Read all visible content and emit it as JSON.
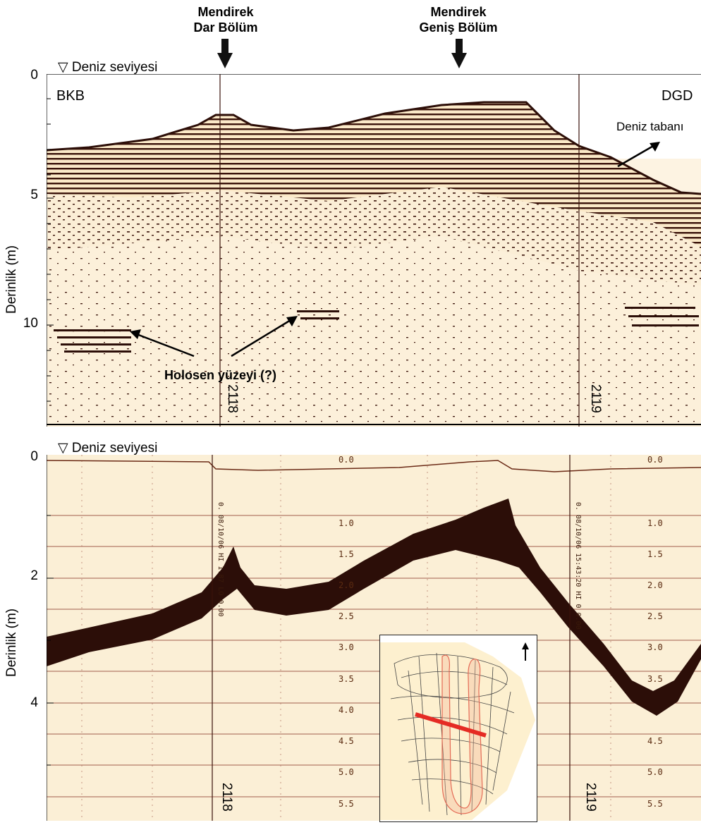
{
  "headers": {
    "narrow": {
      "line1": "Mendirek",
      "line2": "Dar Bölüm"
    },
    "wide": {
      "line1": "Mendirek",
      "line2": "Geniş Bölüm"
    }
  },
  "top_panel": {
    "sea_level_symbol": "▽",
    "sea_level_label": "Deniz seviyesi",
    "left_dir": "BKB",
    "right_dir": "DGD",
    "y_axis_label": "Derinlik (m)",
    "y_ticks": [
      "0",
      "5",
      "10"
    ],
    "seabed_label": "Deniz tabanı",
    "holocene_label": "Holosen yüzeyi (?)",
    "line_ids": [
      "2118",
      "2119"
    ]
  },
  "bottom_panel": {
    "sea_level_symbol": "▽",
    "sea_level_label": "Deniz seviyesi",
    "y_axis_label": "Derinlik (m)",
    "y_ticks": [
      "0",
      "2",
      "4"
    ],
    "scale_labels": [
      "0.0",
      "1.0",
      "1.5",
      "2.0",
      "2.5",
      "3.0",
      "3.5",
      "4.0",
      "4.5",
      "5.0",
      "5.5"
    ],
    "paper_text_left": "0. 08/10/06 HI 1.87 LO 0.00",
    "paper_text_right": "0. 08/10/06 15:43:20 HI 0 0.00",
    "line_ids": [
      "2118",
      "2119"
    ]
  },
  "colors": {
    "paper": "#fbefd6",
    "ink": "#2c0e08",
    "track_red": "#e52b24"
  }
}
